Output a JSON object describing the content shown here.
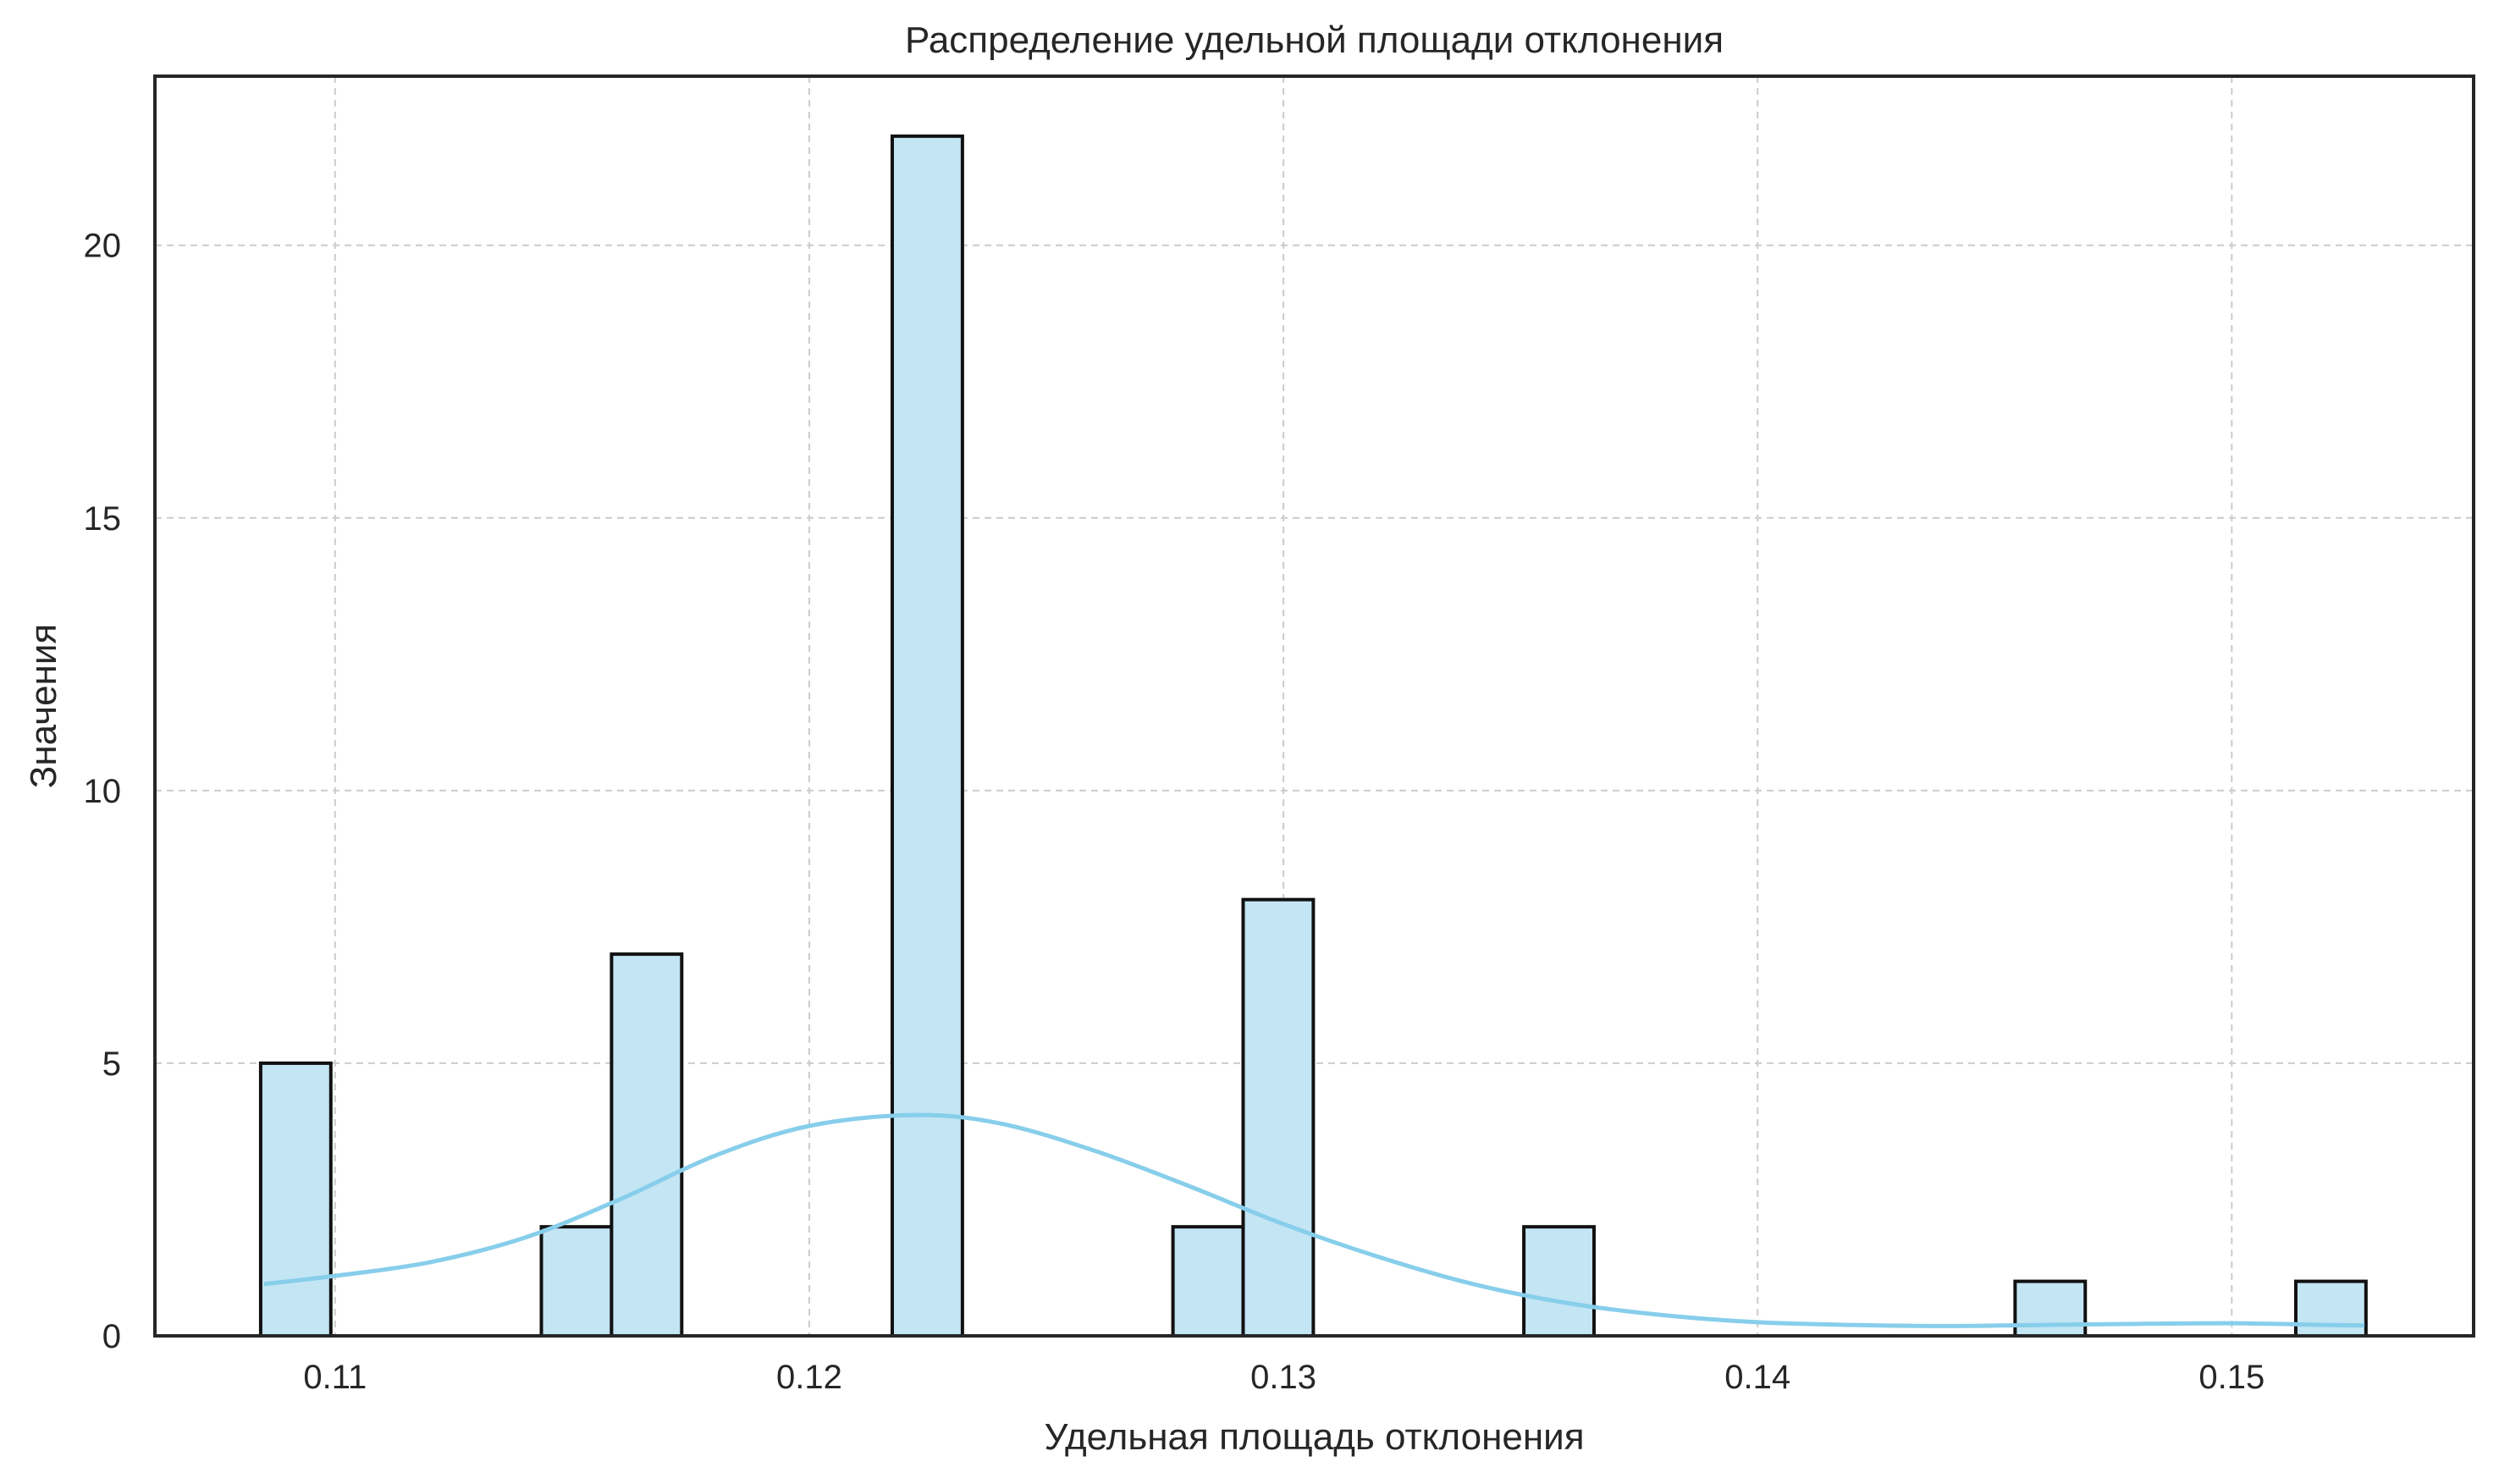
{
  "chart_data": {
    "type": "bar",
    "title": "Распределение удельной площади отклонения",
    "xlabel": "Удельная площадь отклонения",
    "ylabel": "Значения",
    "xlim": [
      0.1062,
      0.1551
    ],
    "ylim": [
      0,
      23.1
    ],
    "xticks": [
      0.11,
      0.12,
      0.13,
      0.14,
      0.15
    ],
    "xtick_labels": [
      "0.11",
      "0.12",
      "0.13",
      "0.14",
      "0.15"
    ],
    "yticks": [
      0,
      5,
      10,
      15,
      20
    ],
    "ytick_labels": [
      "0",
      "5",
      "10",
      "15",
      "20"
    ],
    "grid": true,
    "bin_width": 0.00148,
    "bins": [
      {
        "x0": 0.10843,
        "count": 5
      },
      {
        "x0": 0.11435,
        "count": 2
      },
      {
        "x0": 0.11583,
        "count": 7
      },
      {
        "x0": 0.12175,
        "count": 22
      },
      {
        "x0": 0.12767,
        "count": 2
      },
      {
        "x0": 0.12915,
        "count": 8
      },
      {
        "x0": 0.13507,
        "count": 2
      },
      {
        "x0": 0.14543,
        "count": 1
      },
      {
        "x0": 0.15135,
        "count": 1
      }
    ],
    "kde": {
      "x": [
        0.1085,
        0.11,
        0.112,
        0.114,
        0.116,
        0.118,
        0.12,
        0.1222,
        0.124,
        0.126,
        0.128,
        0.13,
        0.132,
        0.134,
        0.136,
        0.138,
        0.14,
        0.142,
        0.144,
        0.146,
        0.148,
        0.15,
        0.152,
        0.1528
      ],
      "y": [
        0.95,
        1.1,
        1.35,
        1.8,
        2.5,
        3.3,
        3.85,
        4.05,
        3.9,
        3.4,
        2.75,
        2.05,
        1.45,
        0.95,
        0.6,
        0.38,
        0.25,
        0.2,
        0.18,
        0.2,
        0.22,
        0.23,
        0.2,
        0.19
      ]
    },
    "colors": {
      "bar_fill": "#c3e5f4",
      "bar_edge": "#111111",
      "kde_line": "#87ceeb"
    }
  }
}
